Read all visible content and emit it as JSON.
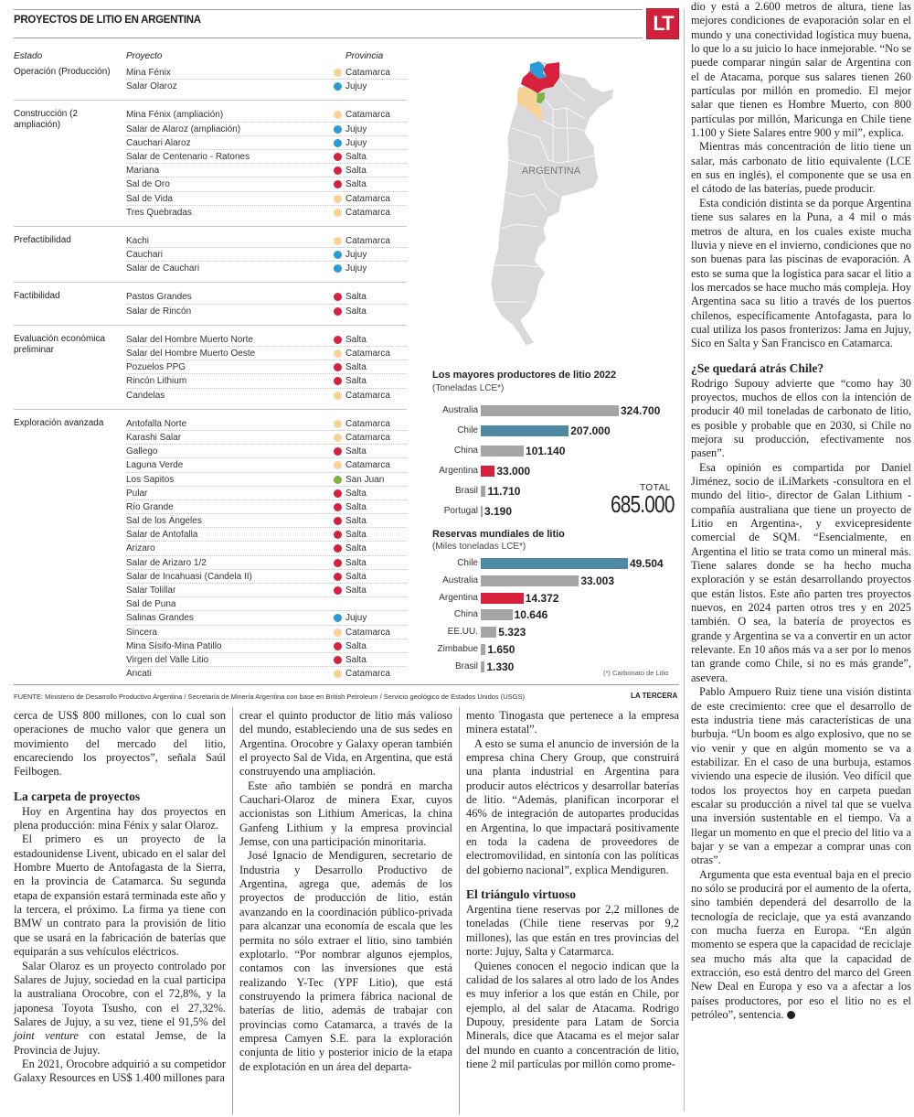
{
  "infographic": {
    "title": "PROYECTOS DE LITIO EN ARGENTINA",
    "logo": "LT",
    "headers": {
      "estado": "Estado",
      "proyecto": "Proyecto",
      "provincia": "Provincia"
    },
    "province_colors": {
      "Catamarca": "#f7d294",
      "Jujuy": "#2a9ad6",
      "Salta": "#d7203b",
      "San Juan": "#7cb342"
    },
    "groups": [
      {
        "estado": "Operación (Producción)",
        "rows": [
          {
            "project": "Mina Fénix",
            "province": "Catamarca"
          },
          {
            "project": "Salar Olaroz",
            "province": "Jujuy"
          }
        ]
      },
      {
        "estado": "Construcción (2 ampliación)",
        "rows": [
          {
            "project": "Mina Fénix (ampliación)",
            "province": "Catamarca"
          },
          {
            "project": "Salar de Alaroz (ampliación)",
            "province": "Jujuy"
          },
          {
            "project": "Cauchari Alaroz",
            "province": "Jujuy"
          },
          {
            "project": "Salar de Centenario - Ratones",
            "province": "Salta"
          },
          {
            "project": "Mariana",
            "province": "Salta"
          },
          {
            "project": "Sal de Oro",
            "province": "Salta"
          },
          {
            "project": "Sal de Vida",
            "province": "Catamarca"
          },
          {
            "project": "Tres Quebradas",
            "province": "Catamarca"
          }
        ]
      },
      {
        "estado": "Prefactibilidad",
        "rows": [
          {
            "project": "Kachi",
            "province": "Catamarca"
          },
          {
            "project": "Cauchari",
            "province": "Jujuy"
          },
          {
            "project": "Salar de Cauchari",
            "province": "Jujuy"
          }
        ]
      },
      {
        "estado": "Factibilidad",
        "rows": [
          {
            "project": "Pastos Grandes",
            "province": "Salta"
          },
          {
            "project": "Salar de Rincón",
            "province": "Salta"
          }
        ]
      },
      {
        "estado": "Evaluación económica preliminar",
        "rows": [
          {
            "project": "Salar del Hombre Muerto Norte",
            "province": "Salta"
          },
          {
            "project": "Salar del Hombre Muerto Oeste",
            "province": "Catamarca"
          },
          {
            "project": "Pozuelos PPG",
            "province": "Salta"
          },
          {
            "project": "Rincón Lithium",
            "province": "Salta"
          },
          {
            "project": "Candelas",
            "province": "Catamarca"
          }
        ]
      },
      {
        "estado": "Exploración avanzada",
        "rows": [
          {
            "project": "Antofalla Norte",
            "province": "Catamarca"
          },
          {
            "project": "Karashi Salar",
            "province": "Catamarca"
          },
          {
            "project": "Gallego",
            "province": "Salta"
          },
          {
            "project": "Laguna Verde",
            "province": "Catamarca"
          },
          {
            "project": "Los Sapitos",
            "province": "San Juan"
          },
          {
            "project": "Pular",
            "province": "Salta"
          },
          {
            "project": "Río Grande",
            "province": "Salta"
          },
          {
            "project": "Sal de los Ángeles",
            "province": "Salta"
          },
          {
            "project": "Salar de Antofalla",
            "province": "Salta"
          },
          {
            "project": "Arizaro",
            "province": "Salta"
          },
          {
            "project": "Salar de Arizaro 1/2",
            "province": "Salta"
          },
          {
            "project": "Salar de Incahuasi (Candela II)",
            "province": "Salta"
          },
          {
            "project": "Salar Tolillar",
            "province": "Salta"
          },
          {
            "project": "Sal de Puna",
            "province": ""
          },
          {
            "project": "Salinas Grandes",
            "province": "Jujuy"
          },
          {
            "project": "Sincera",
            "province": "Catamarca"
          },
          {
            "project": "Mina Sísifo-Mina Patillo",
            "province": "Salta"
          },
          {
            "project": "Virgen del Valle Litio",
            "province": "Salta"
          },
          {
            "project": "Ancati",
            "province": "Catamarca"
          }
        ]
      }
    ],
    "map_label": "ARGENTINA",
    "total_label": "TOTAL",
    "total_value": "685.000",
    "footnote": "(*) Carbonato de Litio",
    "source": "FUENTE: Ministerio de Desarrollo Productivo Argentina / Secretaría de Minería Argentina con base en British Petroleum / Servicio geológico de Estados Unidos (USGS)",
    "brand": "LA TERCERA"
  },
  "chart_data": [
    {
      "type": "bar",
      "orientation": "horizontal",
      "title": "Los mayores productores de litio 2022",
      "subtitle": "(Toneladas LCE*)",
      "categories": [
        "Australia",
        "Chile",
        "China",
        "Argentina",
        "Brasil",
        "Portugal"
      ],
      "values": [
        324700,
        207000,
        101140,
        33000,
        11710,
        3190
      ],
      "value_labels": [
        "324.700",
        "207.000",
        "101.140",
        "33.000",
        "11.710",
        "3.190"
      ],
      "colors": [
        "#a5a5a7",
        "#4f88a3",
        "#a5a5a7",
        "#d7203b",
        "#a5a5a7",
        "#a5a5a7"
      ],
      "xlim": [
        0,
        324700
      ]
    },
    {
      "type": "bar",
      "orientation": "horizontal",
      "title": "Reservas mundiales de litio",
      "subtitle": "(Miles toneladas LCE*)",
      "categories": [
        "Chile",
        "Australia",
        "Argentina",
        "China",
        "EE.UU.",
        "Zimbabue",
        "Brasil"
      ],
      "values": [
        49504,
        33003,
        14372,
        10646,
        5323,
        1650,
        1330
      ],
      "value_labels": [
        "49.504",
        "33.003",
        "14.372",
        "10.646",
        "5.323",
        "1.650",
        "1.330"
      ],
      "colors": [
        "#4f88a3",
        "#a5a5a7",
        "#d7203b",
        "#a5a5a7",
        "#a5a5a7",
        "#a5a5a7",
        "#a5a5a7"
      ],
      "xlim": [
        0,
        49504
      ]
    }
  ],
  "article": {
    "right_column": [
      {
        "type": "p",
        "noindent": true,
        "text": "dio y está a 2.600 metros de altura, tiene las mejores condiciones de evaporación solar en el mundo y una conectividad logística muy buena, lo que lo a su juicio lo hace inmejorable. “No se puede comparar ningún salar de Argentina con el de Atacama, porque sus salares tienen 260 partículas por millón en promedio. El mejor salar que tienen es Hombre Muerto, con 800 partículas por millón, Maricunga en Chile tiene 1.100 y Siete Salares entre 900 y mil”, explica."
      },
      {
        "type": "p",
        "text": "Mientras más concentración de litio tiene un salar, más carbonato de litio equivalente (LCE en sus en inglés), el componente que se usa en el cátodo de las baterías, puede producir."
      },
      {
        "type": "p",
        "text": "Esta condición distinta se da porque Argentina tiene sus salares en la Puna, a 4 mil o más metros de altura, en los cuales existe mucha lluvia y nieve en el invierno, condiciones que no son buenas para las piscinas de evaporación. A esto se suma que la logística para sacar el litio a los mercados se hace mucho más compleja. Hoy Argentina saca su litio a través de los puertos chilenos, específicamente Antofagasta, para lo cual utiliza los pasos fronterizos: Jama en Jujuy, Sico en Salta y San Francisco en Catamarca."
      },
      {
        "type": "h",
        "text": "¿Se quedará atrás Chile?"
      },
      {
        "type": "p",
        "noindent": true,
        "text": "Rodrigo Supouy advierte que “como hay 30 proyectos, muchos de ellos con la intención de producir 40 mil toneladas de carbonato de litio, es posible y probable que en 2030, si Chile no mejora su producción, efectivamente nos pasen”."
      },
      {
        "type": "p",
        "text": "Esa opinión es compartida por Daniel Jiménez, socio de iLiMarkets -consultora en el mundo del litio-, director de Galan Lithium -compañía australiana que tiene un proyecto de Litio en Argentina-, y exvicepresidente comercial de SQM. “Esencialmente, en Argentina el litio se trata como un mineral más. Tiene salares donde se ha hecho mucha exploración y se están desarrollando proyectos que están listos. Este año parten tres proyectos nuevos, en 2024 parten otros tres y en 2025 también. O sea, la batería de proyectos es grande y Argentina se va a convertir en un actor relevante. En 10 años más va a ser por lo menos tan grande como Chile, si no es más grande”, asevera."
      },
      {
        "type": "p",
        "text": "Pablo Ampuero Ruiz tiene una visión distinta de este crecimiento: cree que el desarrollo de esta industria tiene más características de una burbuja. “Un boom es algo explosivo, que no se vio venir y que en algún momento se va a estabilizar. En el caso de una burbuja, estamos viviendo una especie de ilusión. Veo difícil que todos los proyectos hoy en carpeta puedan escalar su producción a nivel tal que se vuelva una inversión sustentable en el tiempo. Va a llegar un momento en que el precio del litio va a bajar y se van a empezar a comprar unas con otras”."
      },
      {
        "type": "p",
        "end": true,
        "text": "Argumenta que esta eventual baja en el precio no sólo se producirá por el aumento de la oferta, sino también dependerá del desarrollo de la tecnología de reciclaje, que ya está avanzando con mucha fuerza en Europa. “En algún momento se espera que la capacidad de reciclaje sea mucho más alta que la capacidad de extracción, eso está dentro del marco del Green New Deal en Europa y eso va a afectar a los países productores, por eso el litio no es el petróleo”, sentencia."
      }
    ],
    "column_1": [
      {
        "type": "p",
        "noindent": true,
        "text": "cerca de US$ 800 millones, con lo cual son operaciones de mucho valor que genera un movimiento del mercado del litio, encareciendo los proyectos”, señala Saúl Feilbogen."
      },
      {
        "type": "h",
        "text": "La carpeta de proyectos"
      },
      {
        "type": "p",
        "text": "Hoy en Argentina hay dos proyectos en plena producción: mina Fénix y salar Olaroz."
      },
      {
        "type": "p",
        "text": "El primero es un proyecto de la estadounidense Livent, ubicado en el salar del Hombre Muerto de Antofagasta de la Sierra, en la provincia de Catamarca. Su segunda etapa de expansión estará terminada este año y la tercera, el próximo. La firma ya tiene con BMW un contrato para la provisión de litio que se usará en la fabricación de baterías que equiparán a sus vehículos eléctricos."
      },
      {
        "type": "p",
        "text": "Salar Olaroz es un proyecto controlado por Salares de Jujuy, sociedad en la cual participa la australiana Orocobre, con el 72,8%, y la japonesa Toyota Tsusho, con el 27,32%. Salares de Jujuy, a su vez, tiene el 91,5% del ",
        "italic": "joint venture",
        "after": " con estatal Jemse, de la Provincia de Jujuy."
      },
      {
        "type": "p",
        "text": "En 2021, Orocobre adquirió a su competidor Galaxy Resources en US$ 1.400 millones para"
      }
    ],
    "column_2": [
      {
        "type": "p",
        "noindent": true,
        "text": "crear el quinto productor de litio más valioso del mundo, estableciendo una de sus sedes en Argentina. Orocobre y Galaxy operan también el proyecto Sal de Vida, en Argentina, que está construyendo una ampliación."
      },
      {
        "type": "p",
        "text": "Este año también se pondrá en marcha Cauchari-Olaroz de minera Exar, cuyos accionistas son Lithium Americas, la china Ganfeng Lithium y la empresa provincial Jemse, con una participación minoritaria."
      },
      {
        "type": "p",
        "text": "José Ignacio de Mendiguren, secretario de Industria y Desarrollo Productivo de Argentina, agrega que, además de los proyectos de producción de litio, están avanzando en la coordinación público-privada para alcanzar una economía de escala que les permita no sólo extraer el litio, sino también explotarlo. “Por nombrar algunos ejemplos, contamos con las inversiones que está realizando Y-Tec (YPF Litio), que está construyendo la primera fábrica nacional de baterías de litio, además de trabajar con provincias como Catamarca, a través de la empresa Camyen S.E. para la exploración conjunta de litio y posterior inicio de la etapa de explotación en un área del departa-"
      }
    ],
    "column_3": [
      {
        "type": "p",
        "noindent": true,
        "text": "mento Tinogasta que pertenece a la empresa minera estatal”."
      },
      {
        "type": "p",
        "text": "A esto se suma el anuncio de inversión de la empresa china Chery Group, que construirá una planta industrial en Argentina para producir autos eléctricos y desarrollar baterías de litio. “Además, planifican incorporar el 46% de integración de autopartes producidas en Argentina, lo que impactará positivamente en toda la cadena de proveedores de electromovilidad, en sintonía con las políticas del gobierno nacional”, explica Mendiguren."
      },
      {
        "type": "h",
        "text": "El triángulo virtuoso"
      },
      {
        "type": "p",
        "noindent": true,
        "text": "Argentina tiene reservas por 2,2 millones de toneladas (Chile tiene reservas por 9,2 millones), las que están en tres provincias del norte: Jujuy, Salta y Catarmarca."
      },
      {
        "type": "p",
        "text": "Quienes conocen el negocio indican que la calidad de los salares al otro lado de los Andes es muy inferior a los que están en Chile, por ejemplo, al del salar de Atacama. Rodrigo Dupouy, presidente para Latam de Sorcia Minerals, dice que Atacama es el mejor salar del mundo en cuanto a concentración de litio, tiene 2 mil partículas por millón como prome-"
      }
    ]
  }
}
